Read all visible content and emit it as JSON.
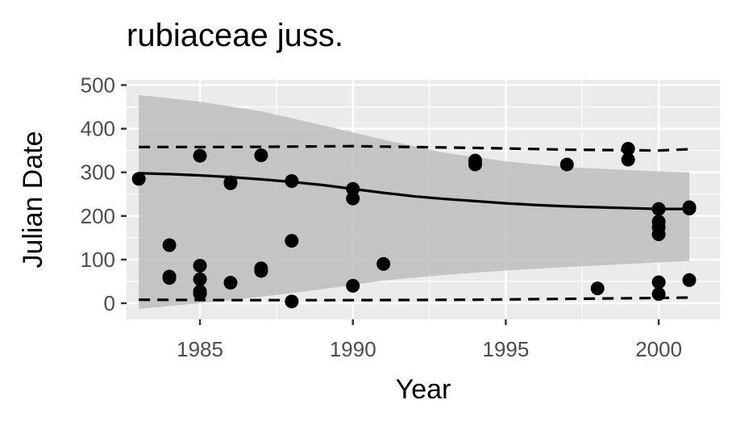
{
  "chart_data": {
    "type": "scatter",
    "title": "rubiaceae juss.",
    "xlabel": "Year",
    "ylabel": "Julian Date",
    "xlim": [
      1982.6,
      2002.0
    ],
    "ylim": [
      -37,
      512
    ],
    "xticks": [
      1985,
      1990,
      1995,
      2000
    ],
    "yticks": [
      0,
      100,
      200,
      300,
      400,
      500
    ],
    "grid": true,
    "legend": "none",
    "points": [
      {
        "x": 1983,
        "y": 285
      },
      {
        "x": 1984,
        "y": 133
      },
      {
        "x": 1984,
        "y": 61
      },
      {
        "x": 1984,
        "y": 58
      },
      {
        "x": 1985,
        "y": 338
      },
      {
        "x": 1985,
        "y": 86
      },
      {
        "x": 1985,
        "y": 55
      },
      {
        "x": 1985,
        "y": 27
      },
      {
        "x": 1985,
        "y": 22
      },
      {
        "x": 1986,
        "y": 277
      },
      {
        "x": 1986,
        "y": 275
      },
      {
        "x": 1986,
        "y": 47
      },
      {
        "x": 1987,
        "y": 339
      },
      {
        "x": 1987,
        "y": 80
      },
      {
        "x": 1987,
        "y": 74
      },
      {
        "x": 1988,
        "y": 280
      },
      {
        "x": 1988,
        "y": 143
      },
      {
        "x": 1988,
        "y": 4
      },
      {
        "x": 1990,
        "y": 262
      },
      {
        "x": 1990,
        "y": 240
      },
      {
        "x": 1990,
        "y": 40
      },
      {
        "x": 1991,
        "y": 90
      },
      {
        "x": 1994,
        "y": 327
      },
      {
        "x": 1994,
        "y": 318
      },
      {
        "x": 1997,
        "y": 318
      },
      {
        "x": 1998,
        "y": 34
      },
      {
        "x": 1999,
        "y": 354
      },
      {
        "x": 1999,
        "y": 329
      },
      {
        "x": 2000,
        "y": 216
      },
      {
        "x": 2000,
        "y": 187
      },
      {
        "x": 2000,
        "y": 174
      },
      {
        "x": 2000,
        "y": 158
      },
      {
        "x": 2000,
        "y": 48
      },
      {
        "x": 2000,
        "y": 21
      },
      {
        "x": 2001,
        "y": 220
      },
      {
        "x": 2001,
        "y": 217
      },
      {
        "x": 2001,
        "y": 53
      }
    ],
    "fit_line": {
      "x": [
        1983,
        1984,
        1985,
        1986,
        1987,
        1988,
        1989,
        1990,
        1991,
        1992,
        1993,
        1994,
        1995,
        1996,
        1997,
        1998,
        1999,
        2000,
        2001
      ],
      "y": [
        298,
        296,
        293,
        289,
        284,
        278,
        271,
        262,
        253,
        245,
        239,
        234,
        229,
        225,
        222,
        220,
        218,
        216,
        216
      ]
    },
    "confidence_band": {
      "x": [
        1983,
        1985,
        1987,
        1989,
        1991,
        1993,
        1995,
        1997,
        1999,
        2001
      ],
      "lower": [
        -13,
        0,
        15,
        32,
        52,
        65,
        75,
        83,
        90,
        97
      ],
      "upper": [
        477,
        462,
        440,
        408,
        375,
        345,
        325,
        312,
        305,
        300
      ]
    },
    "dashed_upper": {
      "x": [
        1983,
        1986,
        1990,
        1994,
        1997,
        2000,
        2001
      ],
      "y": [
        358,
        358,
        360,
        356,
        352,
        350,
        353
      ]
    },
    "dashed_lower": {
      "x": [
        1983,
        1986,
        1990,
        1994,
        1997,
        2000,
        2001
      ],
      "y": [
        8,
        7,
        7,
        8,
        10,
        12,
        13
      ]
    },
    "colors": {
      "panel": "#ebebeb",
      "grid": "#ffffff",
      "band": "#bdbdbd",
      "points": "#000000"
    }
  }
}
